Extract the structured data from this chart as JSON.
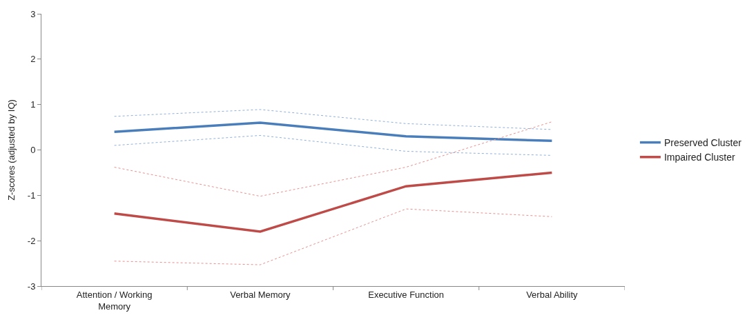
{
  "chart_data": {
    "type": "line",
    "ylabel": "Z-scores (adjusted by IQ)",
    "categories": [
      "Attention / Working Memory",
      "Verbal Memory",
      "Executive Function",
      "Verbal Ability"
    ],
    "ylim": [
      -3,
      3
    ],
    "yticks": [
      -3,
      -2,
      -1,
      0,
      1,
      2,
      3
    ],
    "legend": "right",
    "marker": "none",
    "line_style": "solid",
    "series": [
      {
        "name": "Preserved Cluster",
        "color": "#4a7ebb",
        "values": [
          0.4,
          0.6,
          0.3,
          0.2
        ]
      },
      {
        "name": "Impaired Cluster",
        "color": "#be4b48",
        "values": [
          -1.4,
          -1.8,
          -0.8,
          -0.5
        ]
      },
      {
        "color": "#8fb0dc",
        "line_style": "dotted",
        "values": [
          0.74,
          0.89,
          0.58,
          0.45
        ]
      },
      {
        "color": "#8fb0dc",
        "line_style": "dotted",
        "values": [
          0.1,
          0.32,
          -0.03,
          -0.12
        ]
      },
      {
        "color": "#e8908e",
        "line_style": "dotted",
        "values": [
          -0.38,
          -1.02,
          -0.38,
          0.62
        ]
      },
      {
        "color": "#e8908e",
        "line_style": "dotted",
        "values": [
          -2.45,
          -2.53,
          -1.3,
          -1.47
        ]
      }
    ]
  }
}
